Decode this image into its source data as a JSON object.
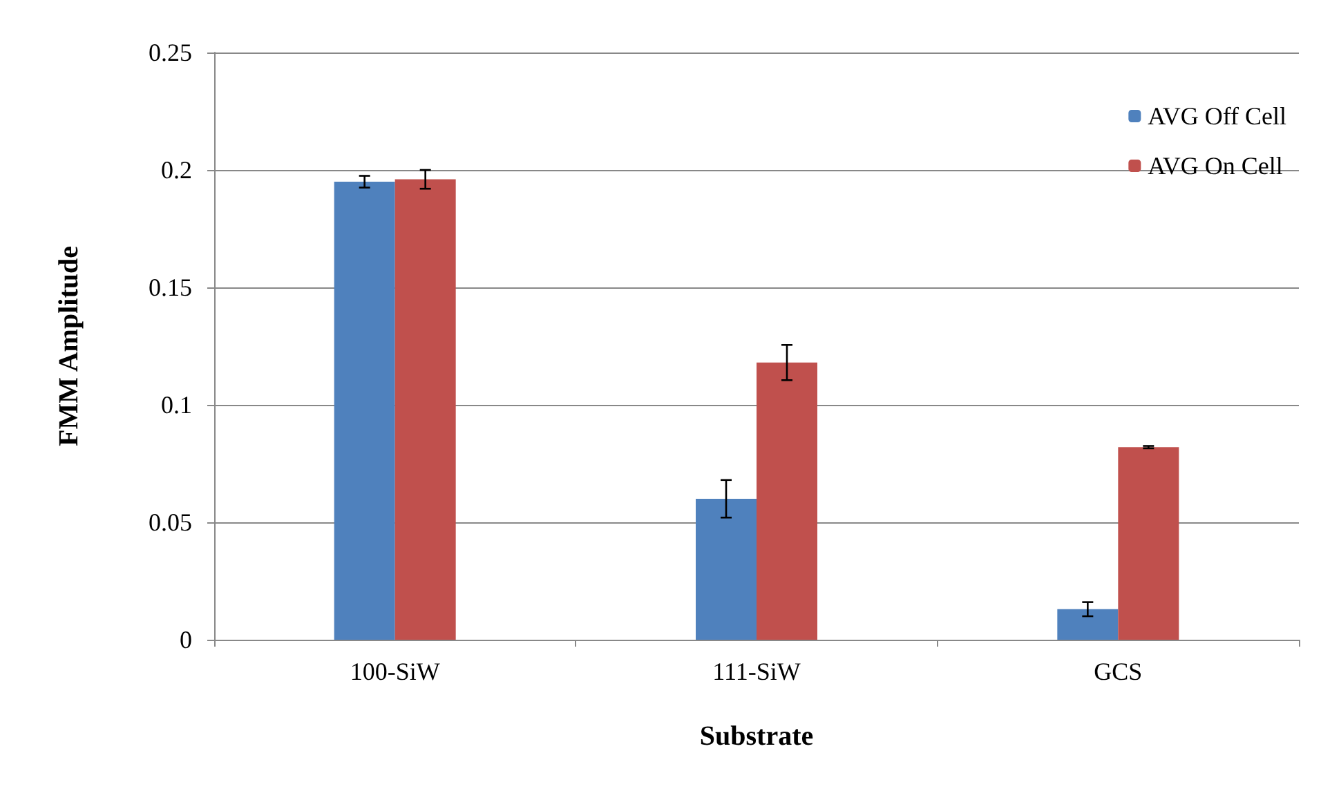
{
  "chart_data": {
    "type": "bar",
    "xlabel": "Substrate",
    "ylabel": "FMM Amplitude",
    "categories": [
      "100-SiW",
      "111-SiW",
      "GCS"
    ],
    "series": [
      {
        "name": "AVG Off Cell",
        "color": "#4f81bd",
        "values": [
          0.195,
          0.06,
          0.013
        ],
        "errors": [
          0.0025,
          0.008,
          0.003
        ]
      },
      {
        "name": "AVG On Cell",
        "color": "#c0504d",
        "values": [
          0.196,
          0.118,
          0.082
        ],
        "errors": [
          0.004,
          0.0075,
          0.0005
        ]
      }
    ],
    "ylim": [
      0,
      0.25
    ],
    "yticks": [
      0,
      0.05,
      0.1,
      0.15,
      0.2,
      0.25
    ],
    "grid": "y",
    "legend": "top right"
  }
}
